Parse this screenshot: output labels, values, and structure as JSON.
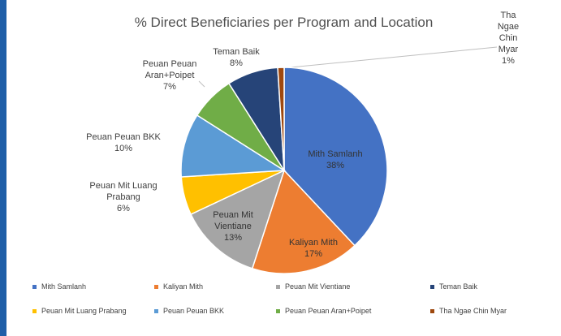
{
  "chart_data": {
    "type": "pie",
    "title": "% Direct Beneficiaries per Program and Location",
    "categories": [
      "Mith Samlanh",
      "Kaliyan Mith",
      "Peuan Mit Vientiane",
      "Peuan Mit Luang Prabang",
      "Peuan Peuan BKK",
      "Peuan Peuan Aran+Poipet",
      "Teman Baik",
      "Tha Ngae Chin Myar"
    ],
    "values": [
      38,
      17,
      13,
      6,
      10,
      7,
      8,
      1
    ],
    "value_labels": [
      "38%",
      "17%",
      "13%",
      "6%",
      "10%",
      "7%",
      "8%",
      "1%"
    ],
    "colors": [
      "#4472c4",
      "#ed7d31",
      "#a5a5a5",
      "#ffc000",
      "#5b9bd5",
      "#70ad47",
      "#264478",
      "#9e480e"
    ],
    "legend": "bottom"
  }
}
